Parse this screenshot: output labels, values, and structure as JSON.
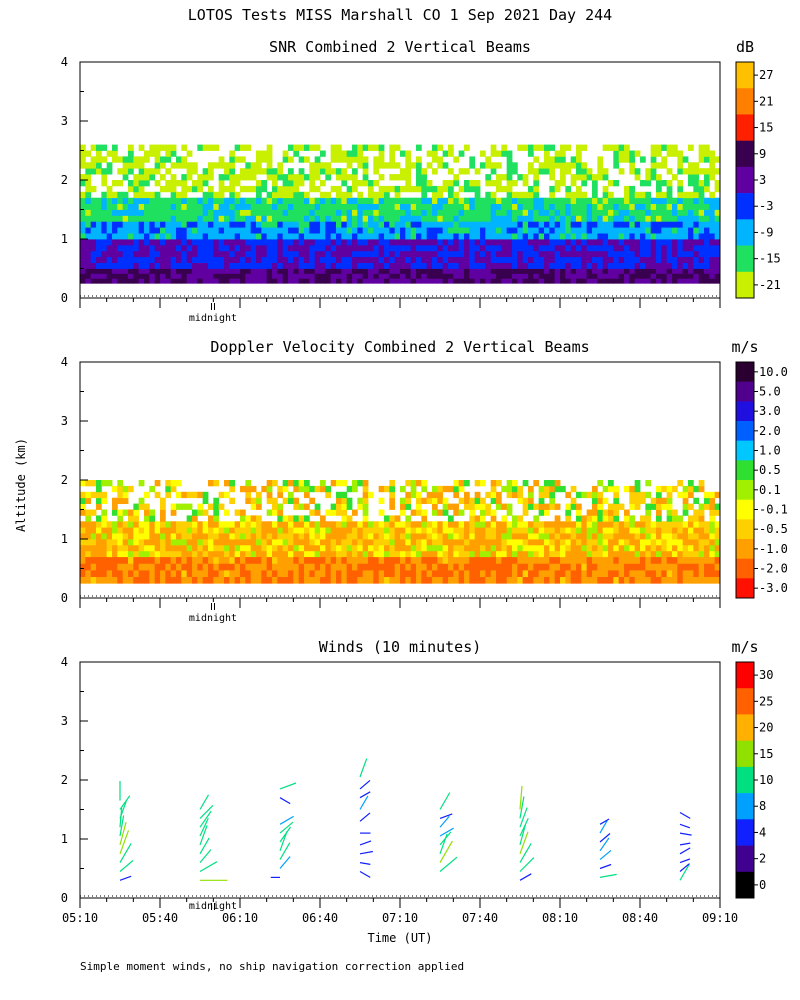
{
  "figure": {
    "title": "LOTOS Tests MISS Marshall CO   1 Sep 2021 Day 244",
    "ylabel": "Altitude (km)",
    "xlabel": "Time (UT)",
    "footnote": "Simple moment winds, no ship navigation correction applied",
    "midnight_label": "midnight"
  },
  "chart_data": [
    {
      "type": "heatmap",
      "title": "SNR Combined 2 Vertical Beams",
      "ylabel": "Altitude (km)",
      "ylim": [
        0,
        4
      ],
      "yticks": [
        "0",
        "1",
        "2",
        "3",
        "4"
      ],
      "xlim": [
        "05:10",
        "09:10"
      ],
      "colorbar": {
        "unit": "dB",
        "tick_labels": [
          "27",
          "21",
          "15",
          "9",
          "3",
          "-3",
          "-9",
          "-15",
          "-21"
        ],
        "colors": [
          "#ffc000",
          "#ff8000",
          "#ff2000",
          "#3a0050",
          "#6000a0",
          "#0030ff",
          "#00b4ff",
          "#20e060",
          "#c8f000"
        ]
      },
      "bands": [
        {
          "alt_from": 0.25,
          "alt_to": 0.5,
          "snr_db": 6
        },
        {
          "alt_from": 0.5,
          "alt_to": 1.0,
          "snr_db": 0
        },
        {
          "alt_from": 1.0,
          "alt_to": 1.3,
          "snr_db": -8
        },
        {
          "alt_from": 1.3,
          "alt_to": 1.7,
          "snr_db": -14
        },
        {
          "alt_from": 1.7,
          "alt_to": 2.6,
          "snr_db": -20
        }
      ]
    },
    {
      "type": "heatmap",
      "title": "Doppler Velocity Combined 2 Vertical Beams",
      "ylabel": "Altitude (km)",
      "ylim": [
        0,
        4
      ],
      "yticks": [
        "0",
        "1",
        "2",
        "3",
        "4"
      ],
      "xlim": [
        "05:10",
        "09:10"
      ],
      "colorbar": {
        "unit": "m/s",
        "tick_labels": [
          "10.0",
          "5.0",
          "3.0",
          "2.0",
          "1.0",
          "0.5",
          "0.1",
          "-0.1",
          "-0.5",
          "-1.0",
          "-2.0",
          "-3.0"
        ],
        "colors": [
          "#2a0030",
          "#50008c",
          "#2010e0",
          "#0060ff",
          "#00c8ff",
          "#30e030",
          "#a0f000",
          "#ffff00",
          "#ffd000",
          "#ffa000",
          "#ff6000",
          "#ff1000"
        ]
      },
      "bands": [
        {
          "alt_from": 0.25,
          "alt_to": 0.7,
          "velocity_ms": -1.5
        },
        {
          "alt_from": 0.7,
          "alt_to": 1.3,
          "velocity_ms": -0.6
        },
        {
          "alt_from": 1.3,
          "alt_to": 2.0,
          "velocity_ms": -0.3
        }
      ]
    },
    {
      "type": "scatter",
      "title": "Winds (10 minutes)",
      "ylabel": "Altitude (km)",
      "xlabel": "Time (UT)",
      "ylim": [
        0,
        4
      ],
      "yticks": [
        "0",
        "1",
        "2",
        "3",
        "4"
      ],
      "xlim": [
        "05:10",
        "09:10"
      ],
      "xticks": [
        "05:10",
        "05:40",
        "06:10",
        "06:40",
        "07:10",
        "07:40",
        "08:10",
        "08:40",
        "09:10"
      ],
      "colorbar": {
        "unit": "m/s",
        "tick_labels": [
          "30",
          "25",
          "20",
          "15",
          "10",
          "8",
          "4",
          "2",
          "0"
        ],
        "colors": [
          "#ff0000",
          "#ff6000",
          "#ffb000",
          "#90e000",
          "#00e080",
          "#00a0ff",
          "#1020ff",
          "#400090",
          "#000000"
        ]
      },
      "profiles": [
        {
          "time": "05:25",
          "winds": [
            {
              "alt": 0.3,
              "speed": 6,
              "dir": 250
            },
            {
              "alt": 0.45,
              "speed": 10,
              "dir": 230
            },
            {
              "alt": 0.6,
              "speed": 14,
              "dir": 210
            },
            {
              "alt": 0.75,
              "speed": 16,
              "dir": 200
            },
            {
              "alt": 0.9,
              "speed": 15,
              "dir": 195
            },
            {
              "alt": 1.05,
              "speed": 13,
              "dir": 190
            },
            {
              "alt": 1.2,
              "speed": 12,
              "dir": 185
            },
            {
              "alt": 1.35,
              "speed": 11,
              "dir": 200
            },
            {
              "alt": 1.5,
              "speed": 10,
              "dir": 215
            },
            {
              "alt": 1.65,
              "speed": 12,
              "dir": 180
            }
          ]
        },
        {
          "time": "05:55",
          "winds": [
            {
              "alt": 0.3,
              "speed": 18,
              "dir": 270
            },
            {
              "alt": 0.45,
              "speed": 12,
              "dir": 240
            },
            {
              "alt": 0.6,
              "speed": 10,
              "dir": 220
            },
            {
              "alt": 0.75,
              "speed": 11,
              "dir": 210
            },
            {
              "alt": 0.9,
              "speed": 13,
              "dir": 200
            },
            {
              "alt": 1.05,
              "speed": 12,
              "dir": 205
            },
            {
              "alt": 1.2,
              "speed": 12,
              "dir": 215
            },
            {
              "alt": 1.35,
              "speed": 11,
              "dir": 225
            },
            {
              "alt": 1.5,
              "speed": 10,
              "dir": 210
            }
          ]
        },
        {
          "time": "06:25",
          "winds": [
            {
              "alt": 0.35,
              "speed": 4,
              "dir": 90
            },
            {
              "alt": 0.5,
              "speed": 9,
              "dir": 220
            },
            {
              "alt": 0.65,
              "speed": 12,
              "dir": 210
            },
            {
              "alt": 0.8,
              "speed": 13,
              "dir": 200
            },
            {
              "alt": 0.95,
              "speed": 11,
              "dir": 215
            },
            {
              "alt": 1.1,
              "speed": 10,
              "dir": 230
            },
            {
              "alt": 1.25,
              "speed": 9,
              "dir": 240
            },
            {
              "alt": 1.7,
              "speed": 6,
              "dir": 300
            },
            {
              "alt": 1.85,
              "speed": 10,
              "dir": 250
            }
          ]
        },
        {
          "time": "06:55",
          "winds": [
            {
              "alt": 0.45,
              "speed": 6,
              "dir": 300
            },
            {
              "alt": 0.6,
              "speed": 5,
              "dir": 280
            },
            {
              "alt": 0.75,
              "speed": 7,
              "dir": 260
            },
            {
              "alt": 0.9,
              "speed": 6,
              "dir": 250
            },
            {
              "alt": 1.1,
              "speed": 5,
              "dir": 270
            },
            {
              "alt": 1.3,
              "speed": 7,
              "dir": 230
            },
            {
              "alt": 1.5,
              "speed": 9,
              "dir": 210
            },
            {
              "alt": 1.7,
              "speed": 6,
              "dir": 240
            },
            {
              "alt": 1.85,
              "speed": 7,
              "dir": 230
            },
            {
              "alt": 2.05,
              "speed": 12,
              "dir": 200
            }
          ]
        },
        {
          "time": "07:25",
          "winds": [
            {
              "alt": 0.45,
              "speed": 14,
              "dir": 230
            },
            {
              "alt": 0.6,
              "speed": 16,
              "dir": 210
            },
            {
              "alt": 0.75,
              "speed": 13,
              "dir": 200
            },
            {
              "alt": 0.9,
              "speed": 10,
              "dir": 220
            },
            {
              "alt": 1.05,
              "speed": 9,
              "dir": 240
            },
            {
              "alt": 1.2,
              "speed": 8,
              "dir": 220
            },
            {
              "alt": 1.35,
              "speed": 7,
              "dir": 250
            },
            {
              "alt": 1.5,
              "speed": 12,
              "dir": 210
            }
          ]
        },
        {
          "time": "07:55",
          "winds": [
            {
              "alt": 0.3,
              "speed": 7,
              "dir": 240
            },
            {
              "alt": 0.45,
              "speed": 12,
              "dir": 225
            },
            {
              "alt": 0.6,
              "speed": 14,
              "dir": 210
            },
            {
              "alt": 0.75,
              "speed": 15,
              "dir": 200
            },
            {
              "alt": 0.9,
              "speed": 13,
              "dir": 195
            },
            {
              "alt": 1.05,
              "speed": 12,
              "dir": 205
            },
            {
              "alt": 1.2,
              "speed": 13,
              "dir": 200
            },
            {
              "alt": 1.35,
              "speed": 14,
              "dir": 190
            },
            {
              "alt": 1.5,
              "speed": 15,
              "dir": 185
            }
          ]
        },
        {
          "time": "08:25",
          "winds": [
            {
              "alt": 0.35,
              "speed": 10,
              "dir": 260
            },
            {
              "alt": 0.5,
              "speed": 6,
              "dir": 250
            },
            {
              "alt": 0.65,
              "speed": 8,
              "dir": 230
            },
            {
              "alt": 0.8,
              "speed": 9,
              "dir": 215
            },
            {
              "alt": 0.95,
              "speed": 7,
              "dir": 230
            },
            {
              "alt": 1.1,
              "speed": 8,
              "dir": 210
            },
            {
              "alt": 1.25,
              "speed": 5,
              "dir": 240
            }
          ]
        },
        {
          "time": "08:55",
          "winds": [
            {
              "alt": 0.3,
              "speed": 12,
              "dir": 210
            },
            {
              "alt": 0.45,
              "speed": 6,
              "dir": 230
            },
            {
              "alt": 0.6,
              "speed": 5,
              "dir": 250
            },
            {
              "alt": 0.75,
              "speed": 6,
              "dir": 240
            },
            {
              "alt": 0.9,
              "speed": 5,
              "dir": 260
            },
            {
              "alt": 1.1,
              "speed": 6,
              "dir": 280
            },
            {
              "alt": 1.25,
              "speed": 5,
              "dir": 290
            },
            {
              "alt": 1.45,
              "speed": 6,
              "dir": 300
            }
          ]
        }
      ]
    }
  ]
}
